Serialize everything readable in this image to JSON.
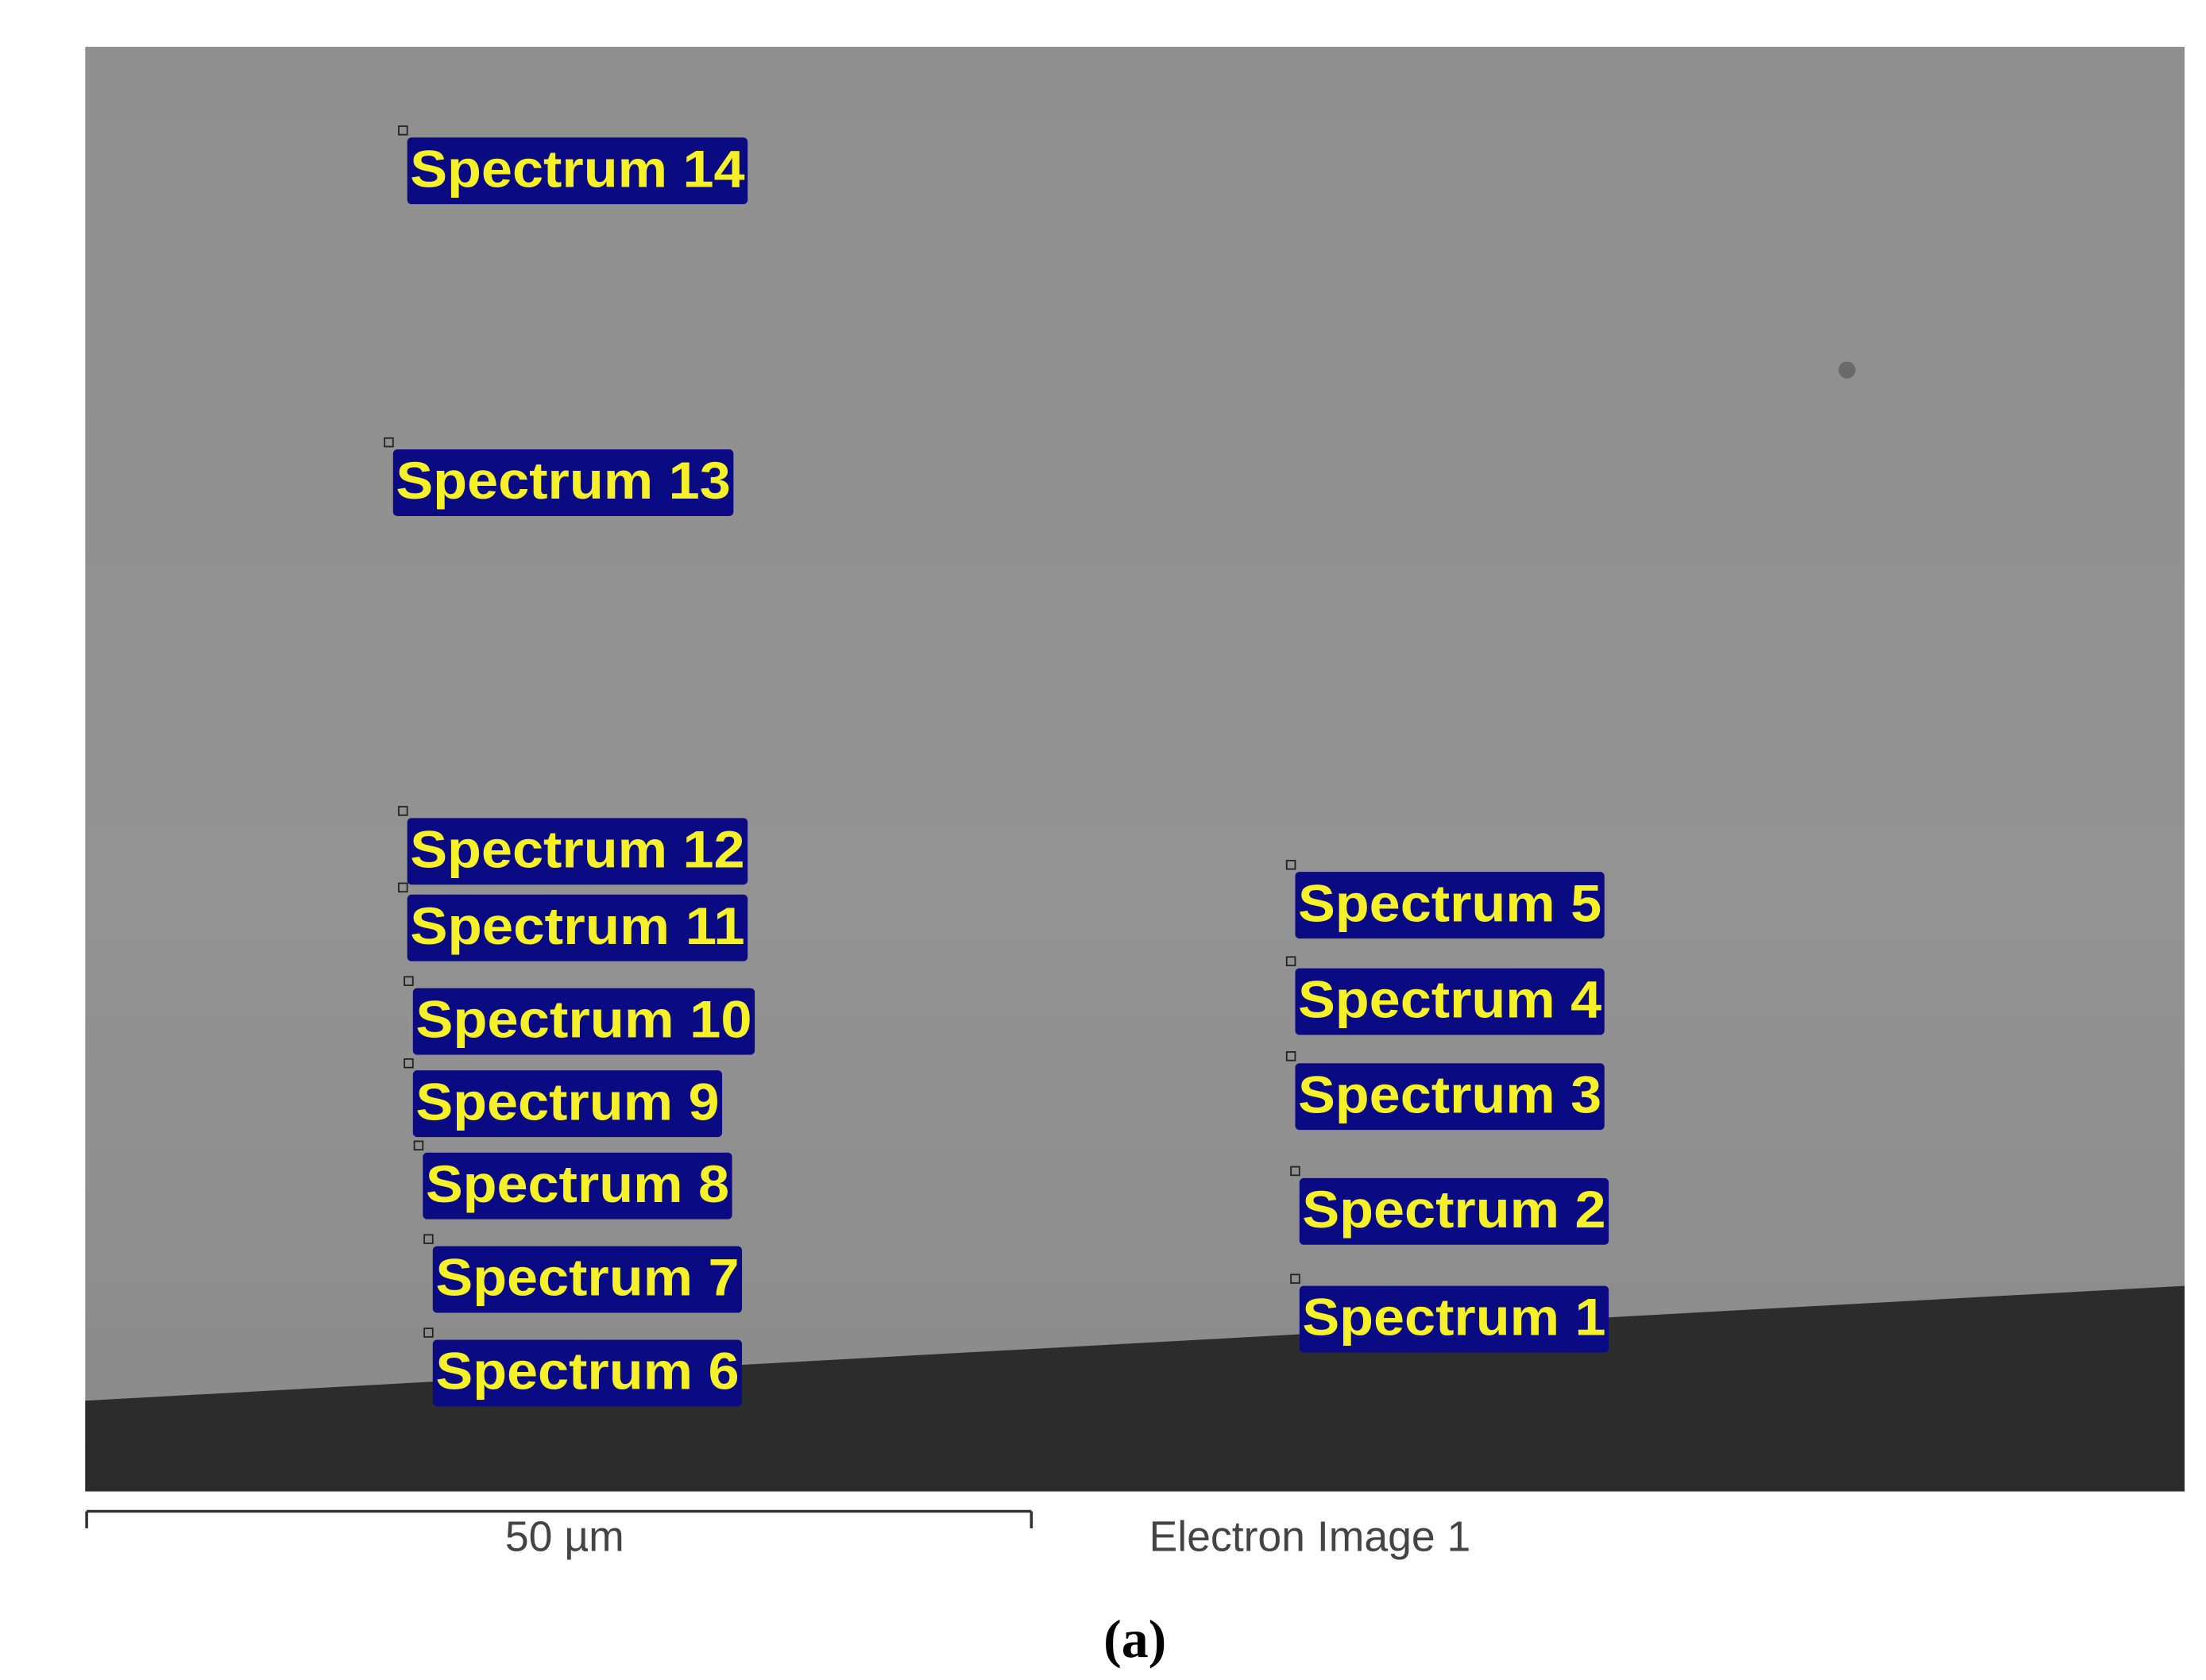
{
  "image": {
    "labels": [
      "Spectrum 14",
      "Spectrum 13",
      "Spectrum 12",
      "Spectrum 11",
      "Spectrum 10",
      "Spectrum 9",
      "Spectrum 8",
      "Spectrum 7",
      "Spectrum 6",
      "Spectrum 5",
      "Spectrum 4",
      "Spectrum 3",
      "Spectrum 2",
      "Spectrum 1"
    ],
    "scale_bar": "50 µm",
    "title": "Electron Image 1"
  },
  "figure_label": "(a)"
}
